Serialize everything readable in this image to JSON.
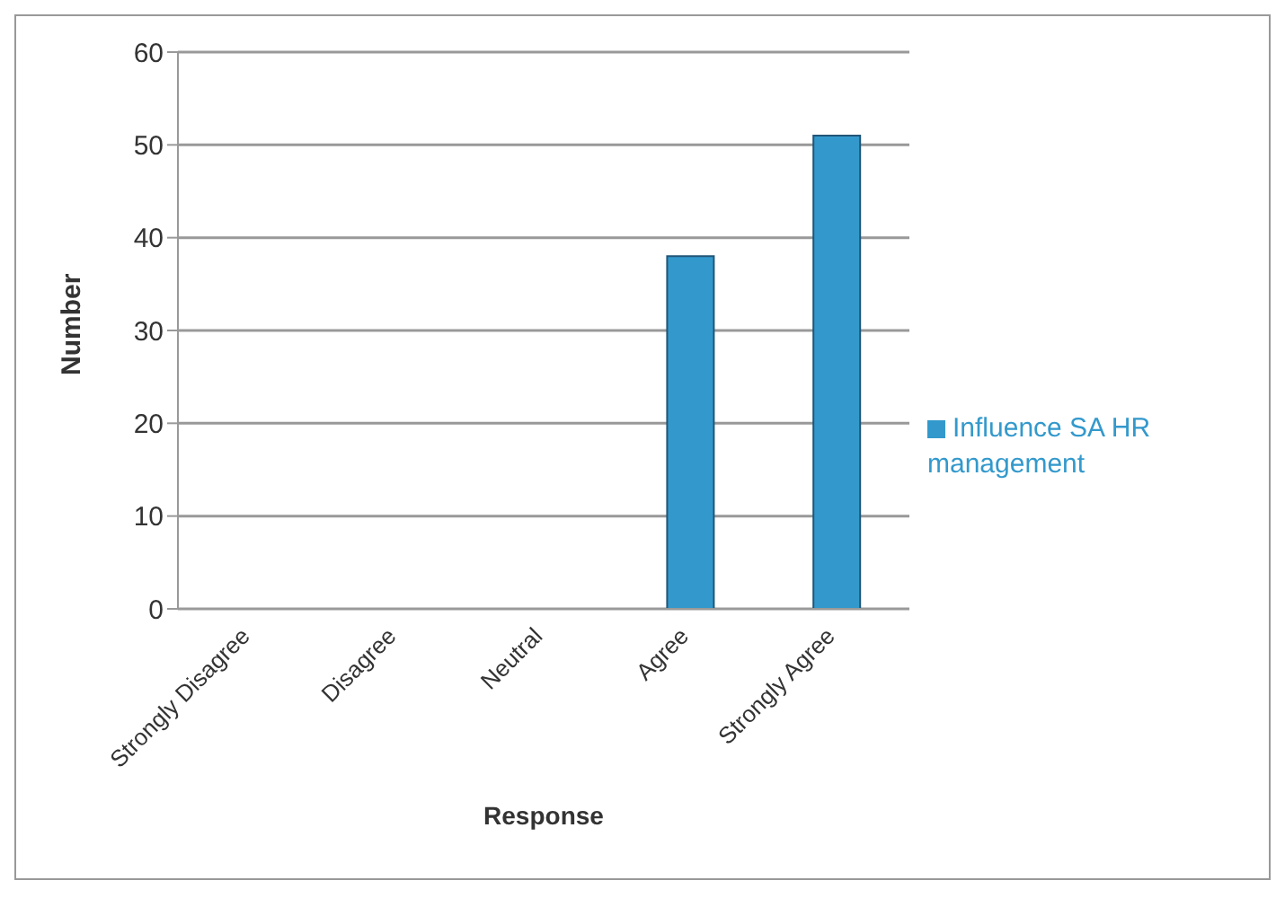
{
  "chart_data": {
    "type": "bar",
    "xlabel": "Response",
    "ylabel": "Number",
    "categories": [
      "Strongly Disagree",
      "Disagree",
      "Neutral",
      "Agree",
      "Strongly Agree"
    ],
    "series": [
      {
        "name": "Influence SA HR management",
        "color": "#3399cc",
        "values": [
          0,
          0,
          0,
          38,
          51
        ]
      }
    ],
    "ylim": [
      0,
      60
    ],
    "yticks": [
      0,
      10,
      20,
      30,
      40,
      50,
      60
    ],
    "grid": "y",
    "legend": "right"
  }
}
